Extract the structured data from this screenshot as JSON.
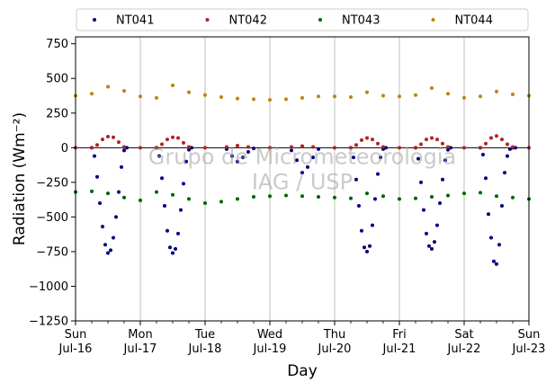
{
  "chart_data": {
    "type": "scatter",
    "xlabel": "Day",
    "ylabel": "Radiation (Wm⁻²)",
    "ylim": [
      -1250,
      800
    ],
    "xlim": [
      "2023-07-16",
      "2023-07-23"
    ],
    "x_ticks": [
      {
        "date": "2023-07-16",
        "label_day": "Sun",
        "label_date": "Jul-16"
      },
      {
        "date": "2023-07-17",
        "label_day": "Mon",
        "label_date": "Jul-17"
      },
      {
        "date": "2023-07-18",
        "label_day": "Tue",
        "label_date": "Jul-18"
      },
      {
        "date": "2023-07-19",
        "label_day": "Wed",
        "label_date": "Jul-19"
      },
      {
        "date": "2023-07-20",
        "label_day": "Thu",
        "label_date": "Jul-20"
      },
      {
        "date": "2023-07-21",
        "label_day": "Fri",
        "label_date": "Jul-21"
      },
      {
        "date": "2023-07-22",
        "label_day": "Sat",
        "label_date": "Jul-22"
      },
      {
        "date": "2023-07-23",
        "label_day": "Sun",
        "label_date": "Jul-23"
      }
    ],
    "y_ticks": [
      {
        "value": 750,
        "label": "750"
      },
      {
        "value": 500,
        "label": "500"
      },
      {
        "value": 250,
        "label": "250"
      },
      {
        "value": 0,
        "label": "0"
      },
      {
        "value": -250,
        "label": "−250"
      },
      {
        "value": -500,
        "label": "−500"
      },
      {
        "value": -750,
        "label": "−750"
      },
      {
        "value": -1000,
        "label": "−1000"
      },
      {
        "value": -1250,
        "label": "−1250"
      }
    ],
    "grid": "vertical lines at day ticks",
    "zero_line": true,
    "legend_position": "above plot",
    "watermark": [
      "Grupo de Micrometeorologia",
      "IAG / USP"
    ],
    "series": [
      {
        "name": "NT041",
        "color": "#00007f",
        "x": [
          "2023-07-16 06:00",
          "2023-07-16 07:00",
          "2023-07-16 08:00",
          "2023-07-16 09:00",
          "2023-07-16 10:00",
          "2023-07-16 11:00",
          "2023-07-16 12:00",
          "2023-07-16 13:00",
          "2023-07-16 14:00",
          "2023-07-16 15:00",
          "2023-07-16 16:00",
          "2023-07-16 17:00",
          "2023-07-16 18:00",
          "2023-07-16 19:00",
          "2023-07-17 06:00",
          "2023-07-17 07:00",
          "2023-07-17 08:00",
          "2023-07-17 09:00",
          "2023-07-17 10:00",
          "2023-07-17 11:00",
          "2023-07-17 12:00",
          "2023-07-17 13:00",
          "2023-07-17 14:00",
          "2023-07-17 15:00",
          "2023-07-17 16:00",
          "2023-07-17 17:00",
          "2023-07-17 18:00",
          "2023-07-17 19:00",
          "2023-07-18 08:00",
          "2023-07-18 10:00",
          "2023-07-18 12:00",
          "2023-07-18 14:00",
          "2023-07-18 16:00",
          "2023-07-18 18:00",
          "2023-07-19 08:00",
          "2023-07-19 10:00",
          "2023-07-19 12:00",
          "2023-07-19 14:00",
          "2023-07-19 16:00",
          "2023-07-19 18:00",
          "2023-07-20 06:00",
          "2023-07-20 07:00",
          "2023-07-20 08:00",
          "2023-07-20 09:00",
          "2023-07-20 10:00",
          "2023-07-20 11:00",
          "2023-07-20 12:00",
          "2023-07-20 13:00",
          "2023-07-20 14:00",
          "2023-07-20 15:00",
          "2023-07-20 16:00",
          "2023-07-20 17:00",
          "2023-07-20 18:00",
          "2023-07-20 19:00",
          "2023-07-21 06:00",
          "2023-07-21 07:00",
          "2023-07-21 08:00",
          "2023-07-21 09:00",
          "2023-07-21 10:00",
          "2023-07-21 11:00",
          "2023-07-21 12:00",
          "2023-07-21 13:00",
          "2023-07-21 14:00",
          "2023-07-21 15:00",
          "2023-07-21 16:00",
          "2023-07-21 17:00",
          "2023-07-21 18:00",
          "2023-07-21 19:00",
          "2023-07-22 06:00",
          "2023-07-22 07:00",
          "2023-07-22 08:00",
          "2023-07-22 09:00",
          "2023-07-22 10:00",
          "2023-07-22 11:00",
          "2023-07-22 12:00",
          "2023-07-22 13:00",
          "2023-07-22 14:00",
          "2023-07-22 15:00",
          "2023-07-22 16:00",
          "2023-07-22 17:00",
          "2023-07-22 18:00",
          "2023-07-22 19:00"
        ],
        "y": [
          0,
          -60,
          -210,
          -400,
          -570,
          -700,
          -760,
          -740,
          -650,
          -500,
          -320,
          -140,
          -20,
          0,
          0,
          -60,
          -220,
          -420,
          -600,
          -720,
          -760,
          -730,
          -620,
          -450,
          -260,
          -100,
          -15,
          0,
          -10,
          -60,
          -100,
          -70,
          -30,
          -5,
          -20,
          -90,
          -180,
          -140,
          -70,
          -10,
          0,
          -70,
          -230,
          -420,
          -600,
          -720,
          -750,
          -710,
          -560,
          -370,
          -190,
          -70,
          -10,
          0,
          0,
          -80,
          -250,
          -450,
          -620,
          -710,
          -730,
          -680,
          -560,
          -400,
          -230,
          -90,
          -15,
          0,
          0,
          -50,
          -220,
          -480,
          -650,
          -820,
          -840,
          -700,
          -420,
          -180,
          -60,
          -10,
          0,
          0
        ]
      },
      {
        "name": "NT042",
        "color": "#b22222",
        "x": [
          "2023-07-16 00:00",
          "2023-07-16 06:00",
          "2023-07-16 08:00",
          "2023-07-16 10:00",
          "2023-07-16 12:00",
          "2023-07-16 14:00",
          "2023-07-16 16:00",
          "2023-07-16 18:00",
          "2023-07-17 00:00",
          "2023-07-17 06:00",
          "2023-07-17 08:00",
          "2023-07-17 10:00",
          "2023-07-17 12:00",
          "2023-07-17 14:00",
          "2023-07-17 16:00",
          "2023-07-17 18:00",
          "2023-07-18 00:00",
          "2023-07-18 08:00",
          "2023-07-18 12:00",
          "2023-07-18 16:00",
          "2023-07-19 00:00",
          "2023-07-19 08:00",
          "2023-07-19 12:00",
          "2023-07-19 16:00",
          "2023-07-20 00:00",
          "2023-07-20 06:00",
          "2023-07-20 08:00",
          "2023-07-20 10:00",
          "2023-07-20 12:00",
          "2023-07-20 14:00",
          "2023-07-20 16:00",
          "2023-07-20 18:00",
          "2023-07-21 00:00",
          "2023-07-21 06:00",
          "2023-07-21 08:00",
          "2023-07-21 10:00",
          "2023-07-21 12:00",
          "2023-07-21 14:00",
          "2023-07-21 16:00",
          "2023-07-21 18:00",
          "2023-07-22 00:00",
          "2023-07-22 06:00",
          "2023-07-22 08:00",
          "2023-07-22 10:00",
          "2023-07-22 12:00",
          "2023-07-22 14:00",
          "2023-07-22 16:00",
          "2023-07-22 18:00",
          "2023-07-23 00:00"
        ],
        "y": [
          0,
          0,
          20,
          60,
          80,
          75,
          40,
          5,
          0,
          0,
          25,
          60,
          75,
          70,
          35,
          5,
          0,
          5,
          15,
          5,
          0,
          5,
          12,
          5,
          0,
          0,
          20,
          55,
          70,
          60,
          30,
          5,
          0,
          0,
          25,
          60,
          70,
          60,
          30,
          5,
          0,
          0,
          30,
          70,
          85,
          60,
          25,
          5,
          0
        ]
      },
      {
        "name": "NT043",
        "color": "#006400",
        "x": [
          "2023-07-16 00:00",
          "2023-07-16 06:00",
          "2023-07-16 12:00",
          "2023-07-16 18:00",
          "2023-07-17 00:00",
          "2023-07-17 06:00",
          "2023-07-17 12:00",
          "2023-07-17 18:00",
          "2023-07-18 00:00",
          "2023-07-18 06:00",
          "2023-07-18 12:00",
          "2023-07-18 18:00",
          "2023-07-19 00:00",
          "2023-07-19 06:00",
          "2023-07-19 12:00",
          "2023-07-19 18:00",
          "2023-07-20 00:00",
          "2023-07-20 06:00",
          "2023-07-20 12:00",
          "2023-07-20 18:00",
          "2023-07-21 00:00",
          "2023-07-21 06:00",
          "2023-07-21 12:00",
          "2023-07-21 18:00",
          "2023-07-22 00:00",
          "2023-07-22 06:00",
          "2023-07-22 12:00",
          "2023-07-22 18:00",
          "2023-07-23 00:00"
        ],
        "y": [
          -320,
          -315,
          -330,
          -360,
          -380,
          -320,
          -340,
          -370,
          -400,
          -390,
          -370,
          -355,
          -350,
          -345,
          -350,
          -355,
          -360,
          -365,
          -330,
          -350,
          -370,
          -365,
          -355,
          -345,
          -330,
          -325,
          -350,
          -360,
          -370
        ]
      },
      {
        "name": "NT044",
        "color": "#b8860b",
        "x": [
          "2023-07-16 00:00",
          "2023-07-16 06:00",
          "2023-07-16 12:00",
          "2023-07-16 18:00",
          "2023-07-17 00:00",
          "2023-07-17 06:00",
          "2023-07-17 12:00",
          "2023-07-17 18:00",
          "2023-07-18 00:00",
          "2023-07-18 06:00",
          "2023-07-18 12:00",
          "2023-07-18 18:00",
          "2023-07-19 00:00",
          "2023-07-19 06:00",
          "2023-07-19 12:00",
          "2023-07-19 18:00",
          "2023-07-20 00:00",
          "2023-07-20 06:00",
          "2023-07-20 12:00",
          "2023-07-20 18:00",
          "2023-07-21 00:00",
          "2023-07-21 06:00",
          "2023-07-21 12:00",
          "2023-07-21 18:00",
          "2023-07-22 00:00",
          "2023-07-22 06:00",
          "2023-07-22 12:00",
          "2023-07-22 18:00",
          "2023-07-23 00:00"
        ],
        "y": [
          375,
          390,
          440,
          410,
          370,
          360,
          450,
          400,
          380,
          365,
          355,
          350,
          345,
          350,
          360,
          370,
          370,
          365,
          400,
          375,
          370,
          380,
          430,
          390,
          360,
          370,
          405,
          385,
          375
        ]
      }
    ]
  }
}
